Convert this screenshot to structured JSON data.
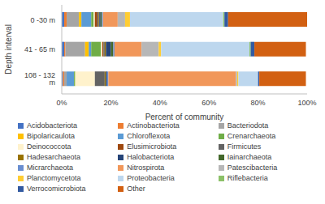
{
  "chart_data": {
    "type": "bar",
    "orientation": "horizontal",
    "stacked": true,
    "grid": false,
    "legend": "bottom",
    "x_label": "Percent of community",
    "y_label": "Depth interval",
    "categories": [
      "0 -30 m",
      "41 - 65 m",
      "108 - 132 m"
    ],
    "xlim": [
      0,
      100
    ],
    "xticks": [
      {
        "value": 0,
        "label": "0%"
      },
      {
        "value": 20,
        "label": "20%"
      },
      {
        "value": 40,
        "label": "40%"
      },
      {
        "value": 60,
        "label": "60%"
      },
      {
        "value": 80,
        "label": "80%"
      },
      {
        "value": 100,
        "label": "100%"
      }
    ],
    "series": [
      {
        "name": "Acidobacteriota",
        "color": "#4472c4",
        "values": [
          1,
          1,
          0.5
        ]
      },
      {
        "name": "Actinobacteriota",
        "color": "#ed7d31",
        "values": [
          1,
          0.5,
          0.5
        ]
      },
      {
        "name": "Bacteriodota",
        "color": "#a5a5a5",
        "values": [
          5,
          8,
          1
        ]
      },
      {
        "name": "Bipolaricaulota",
        "color": "#ffc000",
        "values": [
          1,
          1.5,
          0
        ]
      },
      {
        "name": "Chloroflexota",
        "color": "#5b9bd5",
        "values": [
          4,
          1,
          3
        ]
      },
      {
        "name": "Crenarchaeota",
        "color": "#70ad47",
        "values": [
          1,
          4,
          0.5
        ]
      },
      {
        "name": "Deinococcota",
        "color": "#fff2cc",
        "values": [
          0.5,
          0.5,
          8
        ]
      },
      {
        "name": "Elusimicrobiota",
        "color": "#9e480e",
        "values": [
          1,
          0.5,
          0
        ]
      },
      {
        "name": "Firmicutes",
        "color": "#636363",
        "values": [
          0.5,
          0.5,
          4
        ]
      },
      {
        "name": "Hadesarchaeota",
        "color": "#997300",
        "values": [
          0.3,
          0.5,
          0.5
        ]
      },
      {
        "name": "Halobacteriota",
        "color": "#264478",
        "values": [
          0.5,
          2,
          0.5
        ]
      },
      {
        "name": "Iainarchaeota",
        "color": "#43682b",
        "values": [
          0.5,
          1,
          0
        ]
      },
      {
        "name": "Micrarchaeota",
        "color": "#698ed0",
        "values": [
          0.5,
          0.5,
          0.5
        ]
      },
      {
        "name": "Nitrospirota",
        "color": "#f1975a",
        "values": [
          6,
          11,
          52
        ]
      },
      {
        "name": "Patescibacteria",
        "color": "#b7b7b7",
        "values": [
          3,
          7,
          0.5
        ]
      },
      {
        "name": "Planctomycetota",
        "color": "#ffcd33",
        "values": [
          2,
          1,
          0.5
        ]
      },
      {
        "name": "Proteobacteria",
        "color": "#bdd7ee",
        "values": [
          38,
          36,
          8
        ]
      },
      {
        "name": "Riflebacteria",
        "color": "#8cc168",
        "values": [
          0.5,
          0.5,
          0
        ]
      },
      {
        "name": "Verrocomicrobiota",
        "color": "#335aa1",
        "values": [
          1.5,
          1.5,
          0.5
        ]
      },
      {
        "name": "Other",
        "color": "#d26012",
        "values": [
          32.2,
          21,
          19
        ]
      }
    ]
  }
}
